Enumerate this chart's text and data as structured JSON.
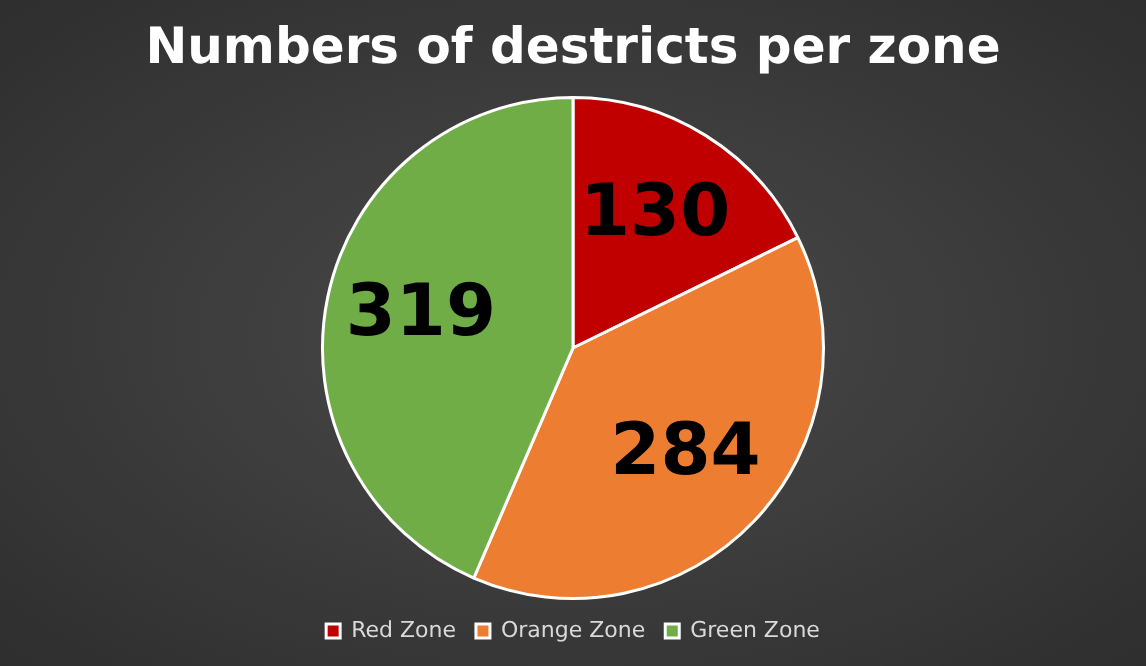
{
  "chart_data": {
    "type": "pie",
    "title": "Numbers of destricts per zone",
    "categories": [
      "Red Zone",
      "Orange Zone",
      "Green Zone"
    ],
    "values": [
      130,
      284,
      319
    ],
    "colors": [
      "#c00000",
      "#ed7d31",
      "#70ad47"
    ],
    "data_labels": true,
    "legend": "bottom"
  }
}
